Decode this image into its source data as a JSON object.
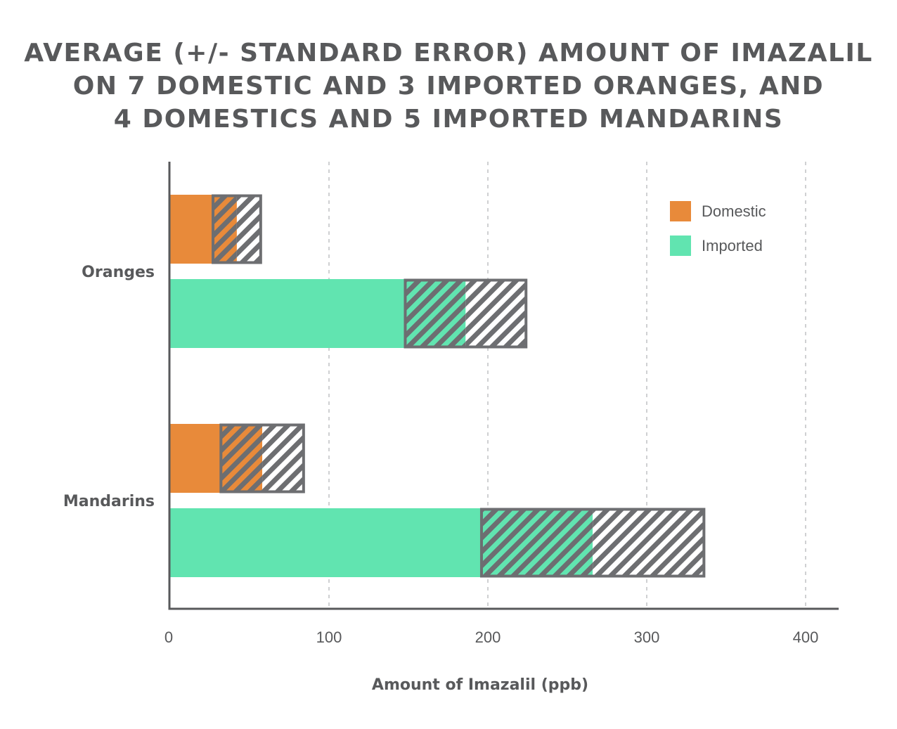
{
  "chart_data": {
    "type": "bar",
    "orientation": "horizontal",
    "title_lines": [
      "AVERAGE (+/- STANDARD ERROR) AMOUNT OF IMAZALIL",
      "ON 7 DOMESTIC AND 3 IMPORTED ORANGES, AND",
      "4 DOMESTICS AND 5 IMPORTED MANDARINS"
    ],
    "categories": [
      "Oranges",
      "Mandarins"
    ],
    "series": [
      {
        "name": "Domestic",
        "color": "#e88a3a",
        "values": [
          27,
          32
        ],
        "errors": [
          15,
          26
        ]
      },
      {
        "name": "Imported",
        "color": "#61e4b0",
        "values": [
          148,
          196
        ],
        "errors": [
          38,
          70
        ]
      }
    ],
    "xlabel": "Amount of Imazalil (ppb)",
    "xticks": [
      0,
      100,
      200,
      300,
      400
    ],
    "xlim": [
      0,
      420
    ],
    "grid": true,
    "legend_position": "top-right",
    "error_style": "hatched",
    "error_color": "#6d6e71",
    "axis_color": "#58595b"
  }
}
